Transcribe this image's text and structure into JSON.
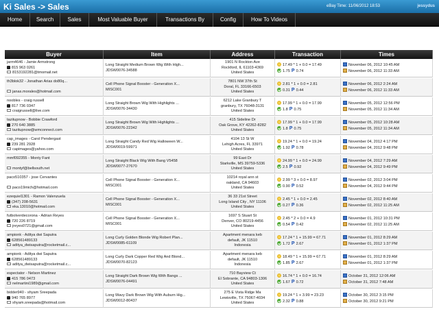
{
  "header": {
    "title": "Ki Sales -> Sales",
    "ebay_time": "eBay Time: 11/06/2012 18:53",
    "username": "jessydus"
  },
  "nav": [
    "Home",
    "Search",
    "Sales",
    "Most Valuable Buyer",
    "Transactions By",
    "Config",
    "How To Videos"
  ],
  "columns": [
    "Buyer",
    "Item",
    "Address",
    "Transaction",
    "Times"
  ],
  "rows": [
    {
      "buyer": "jarm4646 - Jamie Armstrong",
      "phone": "815 963 0261",
      "email": "8153192281@tmomail.net",
      "item": "Long Straight Medium Brown Wig With High...",
      "sku": "JDSW0076-34588",
      "addr1": "1901 N Rockton Ave",
      "addr2": "Rockford, IL 61103-4369",
      "addr3": "United States",
      "calc": "17.49 * 1 + 0.0 = 17.49",
      "fee": "1.75",
      "fee2": "0.74",
      "t1": "November 06, 2012 10:45 AM",
      "t2": "November 06, 2012 11:33 AM"
    },
    {
      "buyer": "th3blok32 - Jonathan Arias do80q...",
      "phone": "",
      "email": "janas.morales@hotmail.com",
      "item": "Cell Phone Signal Booster - Generation X...",
      "sku": "MISC001",
      "addr1": "7801 NW 37th St",
      "addr2": "Doral, FL 33166-6503",
      "addr3": "United States",
      "calc": "2.81 * 1 + 0.0 = 2.81",
      "fee": "0.31",
      "fee2": "0.44",
      "t1": "November 06, 2012 2:24 AM",
      "t2": "November 06, 2012 11:33 AM"
    },
    {
      "buyer": "noobles - craig russell",
      "phone": "817 736 0347",
      "email": "craigrussell@live.com",
      "item": "Long Straight Brown Wig With Highlights ...",
      "sku": "JDSW0076-34430",
      "addr1": "6212 Lake Granbury T",
      "addr2": "granbury, TX 76048-3131",
      "addr3": "United States",
      "calc": "17.99 * 1 + 0.0 = 17.99",
      "fee": "1.8",
      "fee2": "0.75",
      "t1": "November 05, 2012 12:56 PM",
      "t2": "November 05, 2012 11:34 AM"
    },
    {
      "buyer": "tazitupnow - Bobbie Crawford",
      "phone": "270 640 3885",
      "email": "tazitupnow@wmconnect.com",
      "item": "Long Straight Brown Wig With Highlights ...",
      "sku": "JDSW0076-22342",
      "addr1": "415 Sideline Dr",
      "addr2": "Oak Grove, KY 42262-8282",
      "addr3": "United States",
      "calc": "17.99 * 1 + 0.0 = 17.99",
      "fee": "1.8",
      "fee2": "0.75",
      "t1": "November 05, 2012 10:28 AM",
      "t2": "November 05, 2012 11:34 AM"
    },
    {
      "buyer": "cap_images - Carol Pendergast",
      "phone": "239 281 2928",
      "email": "capimages@yahoo.com",
      "item": "Long Straight Candy Red Wig Halloween W...",
      "sku": "JDSW0019-59971",
      "addr1": "4104 13 St W",
      "addr2": "Lehigh Acres, FL 33971",
      "addr3": "United States",
      "calc": "19.24 * 1 + 0.0 = 19.24",
      "fee": "1.92",
      "fee2": "0.78",
      "t1": "November 04, 2012 4:17 PM",
      "t2": "November 04, 2012 9:48 PM"
    },
    {
      "buyer": "mmf092355 - Monty Fant",
      "phone": "",
      "email": "montyf@bellsouth.net",
      "item": "Long Straight Black Wig With Bang V5458",
      "sku": "JDSW0077-27670",
      "addr1": "99 East Dr",
      "addr2": "Starkville, MS 39759-5336",
      "addr3": "United States",
      "calc": "24.99 * 1 + 0.0 = 24.99",
      "fee": "2.5",
      "fee2": "0.92",
      "t1": "November 04, 2012 7:29 AM",
      "t2": "November 04, 2012 9:49 PM"
    },
    {
      "buyer": "paco510357 - jose Cervantes",
      "phone": "",
      "email": "paco19mich@hotmail.com",
      "item": "Cell Phone Signal Booster - Generation X...",
      "sku": "MISC001",
      "addr1": "10214 royal ann st",
      "addr2": "oakland, CA 94603",
      "addr3": "United States",
      "calc": "2.99 * 3 + 0.0 = 8.97",
      "fee": "0.90",
      "fee2": "0.52",
      "t1": "November 02, 2012 3:04 PM",
      "t2": "November 04, 2012 9:44 PM"
    },
    {
      "buyer": "ezequiel1301 - Ramon Valenzuela",
      "phone": "(347) 208-5631",
      "email": "eka.13010@hotmail.com",
      "item": "Cell Phone Signal Booster - Generation X...",
      "sku": "MISC001",
      "addr1": "36 33 21st Street",
      "addr2": "Long Island City , NY 11106",
      "addr3": "United States",
      "calc": "2.45 * 1 + 0.0 = 2.45",
      "fee": "0.27",
      "fee2": "0.36",
      "t1": "November 02, 2012 8:40 AM",
      "t2": "November 02, 2012 11:25 AM"
    },
    {
      "buyer": "futbolverdecorona - Adrian Reyes",
      "phone": "720 226 8719",
      "email": "jreyes0721@gmail.com",
      "item": "Cell Phone Signal Booster - Generation X...",
      "sku": "MISC001",
      "addr1": "1697 S Stuart St",
      "addr2": "Denver, CO 80219-4456",
      "addr3": "United States",
      "calc": "2.45 * 2 + 0.0 = 4.9",
      "fee": "0.54",
      "fee2": "0.42",
      "t1": "November 01, 2012 10:31 PM",
      "t2": "November 02, 2012 11:25 AM"
    },
    {
      "buyer": "ampionk - Aditya dwi Saputra",
      "phone": "628561489133",
      "email": "aditya_dwisaputra@rocketmail.c...",
      "item": "Long Curly Golden Blonde Wig Robert Plan...",
      "sku": "JDSW0085-61109",
      "addr1": "Apartment menara keb",
      "addr2": "default, JK 11510",
      "addr3": "Indonesia",
      "calc": "17.24 * 1 + 15.99 = 67.71",
      "fee": "1.72",
      "fee2": "2.67",
      "t1": "November 01, 2012 8:29 AM",
      "t2": "November 01, 2012 1:37 PM"
    },
    {
      "buyer": "ampionk - Aditya dwi Saputra",
      "phone": "628561489133",
      "email": "aditya_dwisaputra@rocketmail.c...",
      "item": "Long Curly Dark Copper Red Wig And Blond...",
      "sku": "JDSW0070-82123",
      "addr1": "Apartment menara keb",
      "addr2": "default, JK 11510",
      "addr3": "Indonesia",
      "calc": "18.49 * 1 + 15.99 = 67.71",
      "fee": "1.85",
      "fee2": "2.67",
      "t1": "November 01, 2012 8:29 AM",
      "t2": "November 01, 2012 1:37 PM"
    },
    {
      "buyer": "espectator - Nelson Martinez",
      "phone": "415 786 0473",
      "email": "nelmartini1989@gmail.com",
      "item": "Long Straight Dark Brown Wig With Bangs ...",
      "sku": "JDSW0076-04491",
      "addr1": "710 Bayview Ct",
      "addr2": "El Sobrante, CA 94803-1306",
      "addr3": "United States",
      "calc": "16.74 * 1 + 0.0 = 16.74",
      "fee": "1.67",
      "fee2": "0.72",
      "t1": "October 31, 2012 12:06 AM",
      "t2": "October 31, 2012 7:48 AM"
    },
    {
      "buyer": "bidder940 - shyam Sreepada",
      "phone": "940 765 8977",
      "email": "shyam.sreepada@hotmail.com",
      "item": "Long Wavy Dark Brown Wig With Auburn Hig...",
      "sku": "JDSW0012-80437",
      "addr1": "275 E Vista Ridge Ma",
      "addr2": "Lewisville, TX 75067-4034",
      "addr3": "United States",
      "calc": "19.24 * 1 + 3.99 = 23.23",
      "fee": "2.32",
      "fee2": "0.88",
      "t1": "October 30, 2012 3:15 PM",
      "t2": "October 30, 2012 9:21 PM"
    }
  ],
  "colors": {
    "title_bg": "#2a86c2",
    "nav_bg": "#1a1a1a",
    "header_bg": "#242424"
  },
  "icons": {
    "phone": "phone-icon",
    "email": "mail-icon",
    "amount": "coin-icon",
    "fee": "check-icon",
    "paypal": "paypal-icon",
    "sold": "calendar-icon",
    "paid": "box-icon"
  }
}
